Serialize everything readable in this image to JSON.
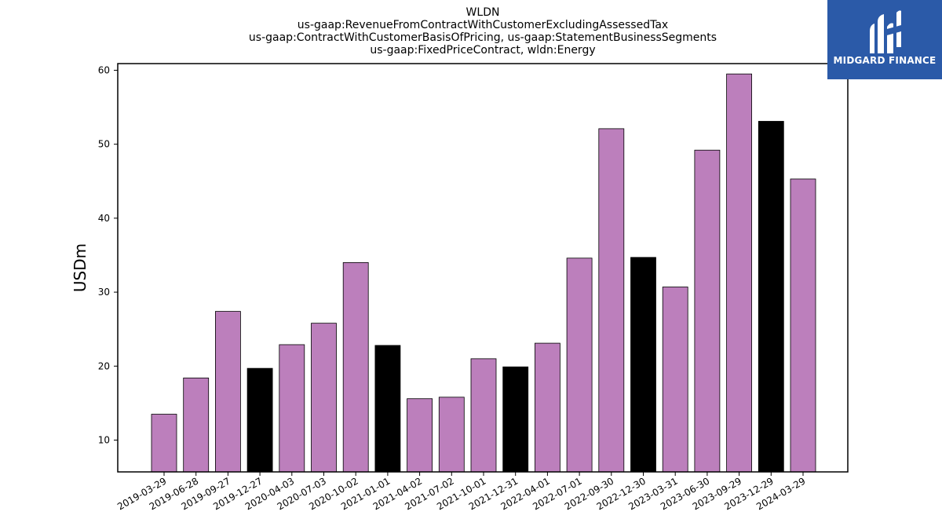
{
  "chart_data": {
    "type": "bar",
    "title_lines": [
      "WLDN",
      "us-gaap:RevenueFromContractWithCustomerExcludingAssessedTax",
      "us-gaap:ContractWithCustomerBasisOfPricing, us-gaap:StatementBusinessSegments",
      "us-gaap:FixedPriceContract, wldn:Energy"
    ],
    "ylabel": "USDm",
    "xlabel": "",
    "ylim": [
      5.7,
      60.9
    ],
    "yticks": [
      10,
      20,
      30,
      40,
      50,
      60
    ],
    "categories": [
      "2019-03-29",
      "2019-06-28",
      "2019-09-27",
      "2019-12-27",
      "2020-04-03",
      "2020-07-03",
      "2020-10-02",
      "2021-01-01",
      "2021-04-02",
      "2021-07-02",
      "2021-10-01",
      "2021-12-31",
      "2022-04-01",
      "2022-07-01",
      "2022-09-30",
      "2022-12-30",
      "2023-03-31",
      "2023-06-30",
      "2023-09-29",
      "2023-12-29",
      "2024-03-29"
    ],
    "values": [
      13.5,
      18.4,
      27.4,
      19.7,
      22.9,
      25.8,
      34.0,
      22.8,
      15.6,
      15.8,
      21.0,
      19.9,
      23.1,
      34.6,
      52.1,
      34.7,
      30.7,
      49.2,
      59.5,
      53.1,
      45.3
    ],
    "bar_colors": [
      "#bc7fbc",
      "#bc7fbc",
      "#bc7fbc",
      "#000000",
      "#bc7fbc",
      "#bc7fbc",
      "#bc7fbc",
      "#000000",
      "#bc7fbc",
      "#bc7fbc",
      "#bc7fbc",
      "#000000",
      "#bc7fbc",
      "#bc7fbc",
      "#bc7fbc",
      "#000000",
      "#bc7fbc",
      "#bc7fbc",
      "#bc7fbc",
      "#000000",
      "#bc7fbc"
    ],
    "grid": false,
    "legend": "none"
  },
  "logo": {
    "text": "MIDGARD FINANCE",
    "background": "#2b5aa8"
  }
}
